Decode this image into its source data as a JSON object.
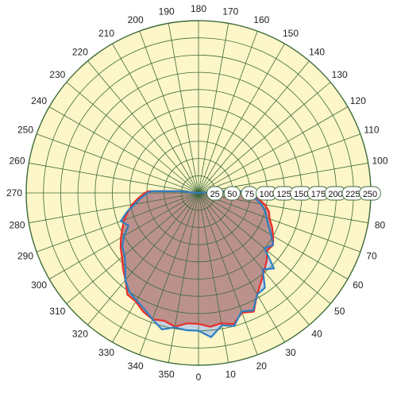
{
  "chart_data": {
    "type": "polar-area",
    "angle_tick_labels": [
      "0",
      "10",
      "20",
      "30",
      "40",
      "50",
      "60",
      "70",
      "80",
      "100",
      "110",
      "120",
      "130",
      "140",
      "150",
      "160",
      "170",
      "180",
      "190",
      "200",
      "210",
      "220",
      "230",
      "240",
      "250",
      "260",
      "270",
      "280",
      "290",
      "300",
      "310",
      "320",
      "330",
      "340",
      "350"
    ],
    "radial_tick_labels": [
      "25",
      "50",
      "75",
      "100",
      "125",
      "150",
      "175",
      "200",
      "225",
      "250"
    ],
    "rlim": [
      0,
      250
    ],
    "angle_range": [
      0,
      360
    ],
    "angle_direction": "counter-clockwise",
    "angle_zero": "bottom",
    "grid": true,
    "background_color": "#fdf6c8",
    "grid_color": "#3d6b3a",
    "series": [
      {
        "color": "#e8302a",
        "fill": "#f4b98a",
        "points": [
          [
            0,
            190
          ],
          [
            5,
            195
          ],
          [
            10,
            192
          ],
          [
            15,
            197
          ],
          [
            20,
            185
          ],
          [
            25,
            190
          ],
          [
            30,
            170
          ],
          [
            35,
            158
          ],
          [
            40,
            148
          ],
          [
            45,
            140
          ],
          [
            50,
            130
          ],
          [
            55,
            132
          ],
          [
            60,
            125
          ],
          [
            65,
            118
          ],
          [
            70,
            110
          ],
          [
            75,
            106
          ],
          [
            80,
            98
          ],
          [
            85,
            86
          ],
          [
            90,
            78
          ],
          [
            92,
            70
          ],
          [
            95,
            30
          ],
          [
            180,
            0
          ],
          [
            265,
            30
          ],
          [
            268,
            72
          ],
          [
            270,
            78
          ],
          [
            275,
            88
          ],
          [
            280,
            98
          ],
          [
            285,
            106
          ],
          [
            290,
            115
          ],
          [
            295,
            122
          ],
          [
            300,
            130
          ],
          [
            305,
            138
          ],
          [
            310,
            145
          ],
          [
            315,
            155
          ],
          [
            320,
            165
          ],
          [
            325,
            180
          ],
          [
            330,
            182
          ],
          [
            335,
            190
          ],
          [
            340,
            195
          ],
          [
            345,
            192
          ],
          [
            350,
            197
          ],
          [
            355,
            190
          ]
        ]
      },
      {
        "color": "#2e7fc2",
        "fill": "#b9cbe3",
        "points": [
          [
            0,
            200
          ],
          [
            5,
            210
          ],
          [
            10,
            195
          ],
          [
            15,
            200
          ],
          [
            20,
            183
          ],
          [
            25,
            188
          ],
          [
            30,
            170
          ],
          [
            35,
            168
          ],
          [
            40,
            145
          ],
          [
            45,
            155
          ],
          [
            50,
            125
          ],
          [
            55,
            132
          ],
          [
            60,
            122
          ],
          [
            65,
            112
          ],
          [
            70,
            105
          ],
          [
            75,
            100
          ],
          [
            80,
            92
          ],
          [
            85,
            82
          ],
          [
            90,
            75
          ],
          [
            92,
            65
          ],
          [
            95,
            28
          ],
          [
            180,
            0
          ],
          [
            265,
            28
          ],
          [
            268,
            68
          ],
          [
            270,
            74
          ],
          [
            275,
            84
          ],
          [
            280,
            94
          ],
          [
            285,
            108
          ],
          [
            290,
            120
          ],
          [
            295,
            112
          ],
          [
            300,
            125
          ],
          [
            305,
            135
          ],
          [
            310,
            140
          ],
          [
            315,
            150
          ],
          [
            320,
            165
          ],
          [
            325,
            175
          ],
          [
            330,
            180
          ],
          [
            335,
            186
          ],
          [
            340,
            195
          ],
          [
            345,
            205
          ],
          [
            350,
            198
          ],
          [
            355,
            200
          ]
        ]
      }
    ]
  }
}
